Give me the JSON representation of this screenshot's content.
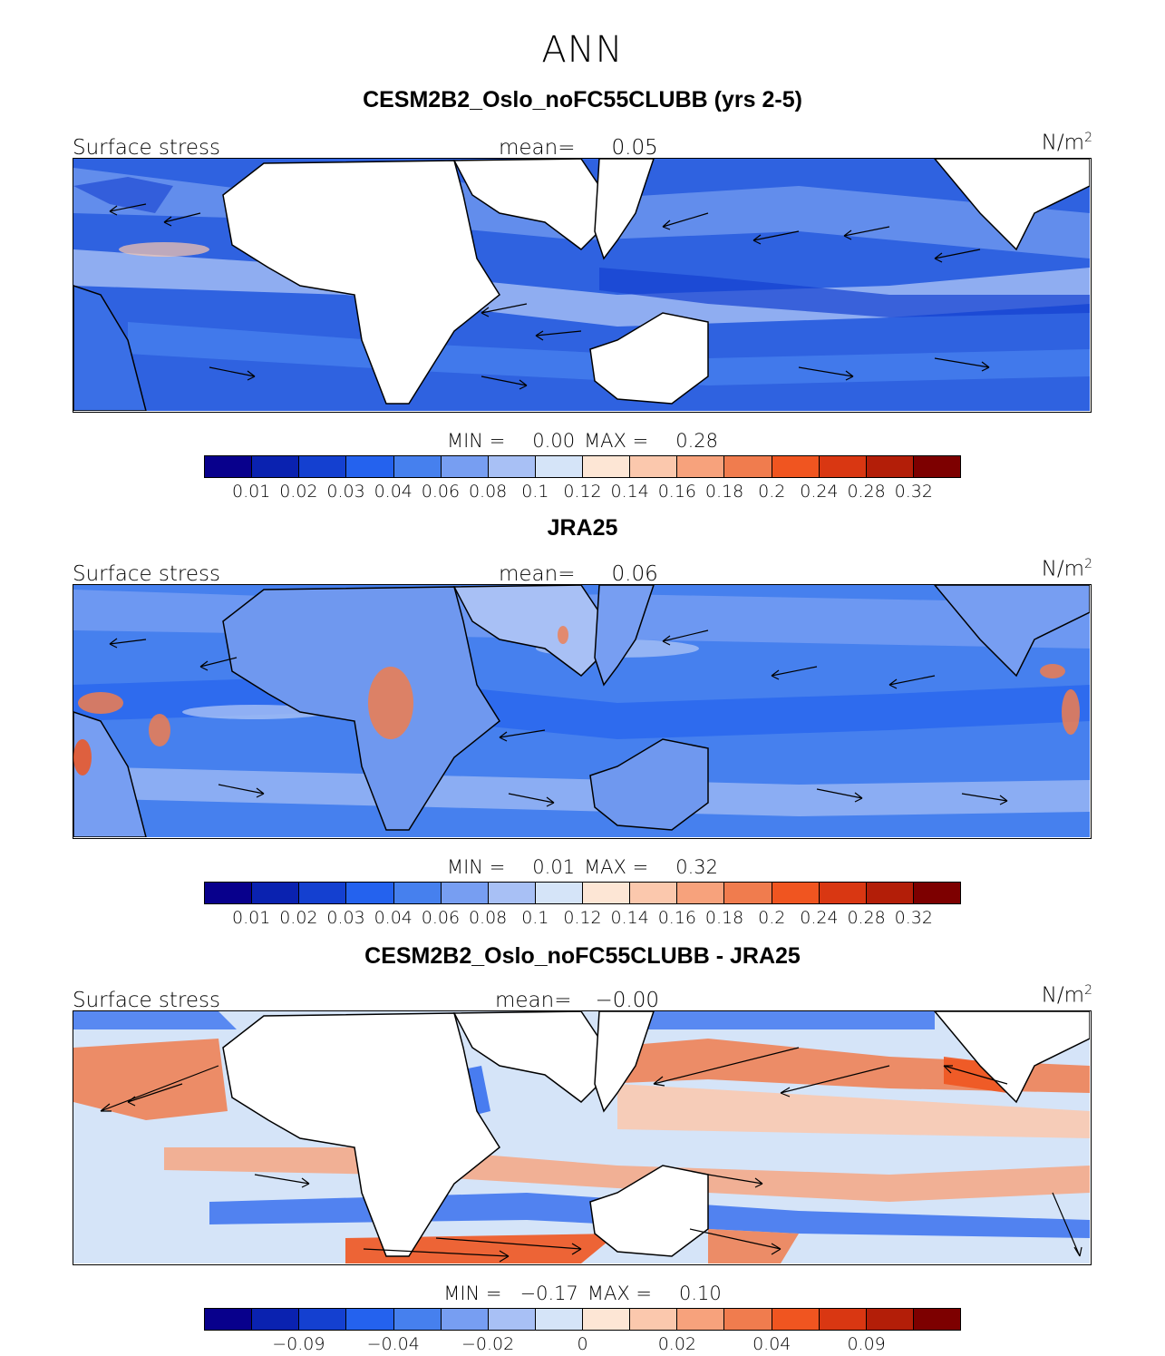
{
  "season": "ANN",
  "colors": [
    "#08008c",
    "#0a22b0",
    "#1440d0",
    "#2462ee",
    "#4680ee",
    "#779ef2",
    "#a8c0f5",
    "#d5e4f8",
    "#fde6d5",
    "#fbc8ad",
    "#f7a27c",
    "#f07c4e",
    "#f05520",
    "#d93712",
    "#b31e08",
    "#7d0000"
  ],
  "panels": [
    {
      "title": "CESM2B2_Oslo_noFC55CLUBB (yrs 2-5)",
      "left_label": "Surface stress",
      "mean_label": "mean=",
      "mean_value": "0.05",
      "units": "N/m",
      "units_sup": "2",
      "min_label": "MIN =",
      "min_value": "0.00",
      "max_label": "MAX =",
      "max_value": "0.28",
      "colorbar_ticks": [
        "0.01",
        "0.02",
        "0.03",
        "0.04",
        "0.06",
        "0.08",
        "0.1",
        "0.12",
        "0.14",
        "0.16",
        "0.18",
        "0.2",
        "0.24",
        "0.28",
        "0.32"
      ]
    },
    {
      "title": "JRA25",
      "left_label": "Surface stress",
      "mean_label": "mean=",
      "mean_value": "0.06",
      "units": "N/m",
      "units_sup": "2",
      "min_label": "MIN =",
      "min_value": "0.01",
      "max_label": "MAX =",
      "max_value": "0.32",
      "colorbar_ticks": [
        "0.01",
        "0.02",
        "0.03",
        "0.04",
        "0.06",
        "0.08",
        "0.1",
        "0.12",
        "0.14",
        "0.16",
        "0.18",
        "0.2",
        "0.24",
        "0.28",
        "0.32"
      ]
    },
    {
      "title": "CESM2B2_Oslo_noFC55CLUBB - JRA25",
      "left_label": "Surface stress",
      "mean_label": "mean=",
      "mean_value": "−0.00",
      "units": "N/m",
      "units_sup": "2",
      "min_label": "MIN =",
      "min_value": "−0.17",
      "max_label": "MAX =",
      "max_value": "0.10",
      "colorbar_ticks": [
        "",
        "−0.09",
        "",
        "−0.04",
        "",
        "−0.02",
        "",
        "0",
        "",
        "0.02",
        "",
        "0.04",
        "",
        "0.09",
        ""
      ]
    }
  ]
}
